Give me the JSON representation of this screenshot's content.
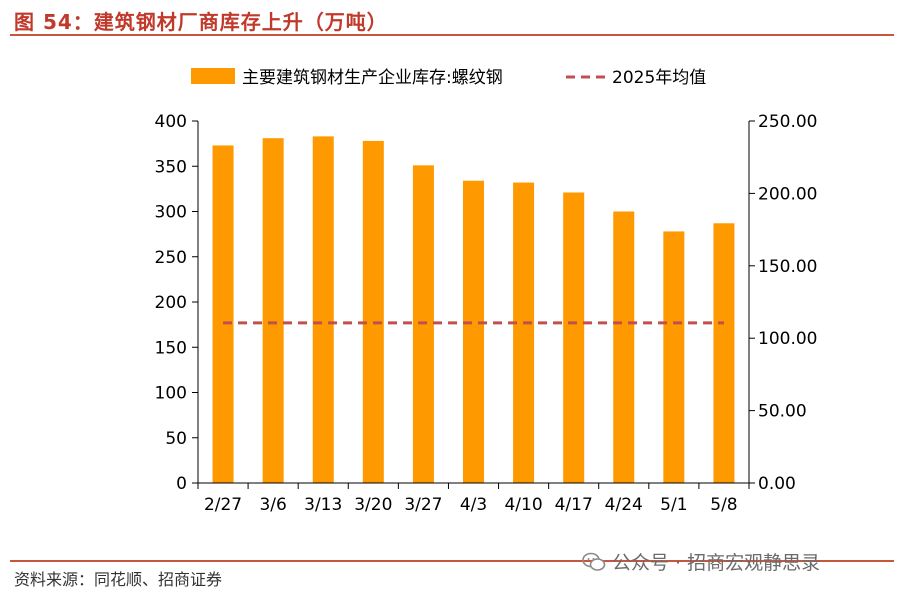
{
  "figure": {
    "title": "图 54：建筑钢材厂商库存上升（万吨）",
    "source": "资料来源：同花顺、招商证券",
    "watermark": "公众号 · 招商宏观静思录",
    "watermark_icon": "wechat-icon"
  },
  "chart_data": {
    "type": "bar",
    "categories": [
      "2/27",
      "3/6",
      "3/13",
      "3/20",
      "3/27",
      "4/3",
      "4/10",
      "4/17",
      "4/24",
      "5/1",
      "5/8"
    ],
    "series": [
      {
        "name": "主要建筑钢材生产企业库存:螺纹钢",
        "type": "bar",
        "axis": "left",
        "color": "#FF9900",
        "values": [
          373,
          381,
          383,
          378,
          351,
          334,
          332,
          321,
          300,
          278,
          287
        ]
      },
      {
        "name": "2025年均值",
        "type": "line",
        "style": "dashed",
        "axis": "left",
        "color": "#C0504D",
        "values": [
          177,
          177,
          177,
          177,
          177,
          177,
          177,
          177,
          177,
          177,
          177
        ]
      }
    ],
    "ylim": [
      0,
      400
    ],
    "yticks": [
      "0",
      "50",
      "100",
      "150",
      "200",
      "250",
      "300",
      "350",
      "400"
    ],
    "y2lim": [
      0,
      250
    ],
    "y2ticks": [
      "0.00",
      "50.00",
      "100.00",
      "150.00",
      "200.00",
      "250.00"
    ],
    "legend_position": "top",
    "grid": false
  }
}
